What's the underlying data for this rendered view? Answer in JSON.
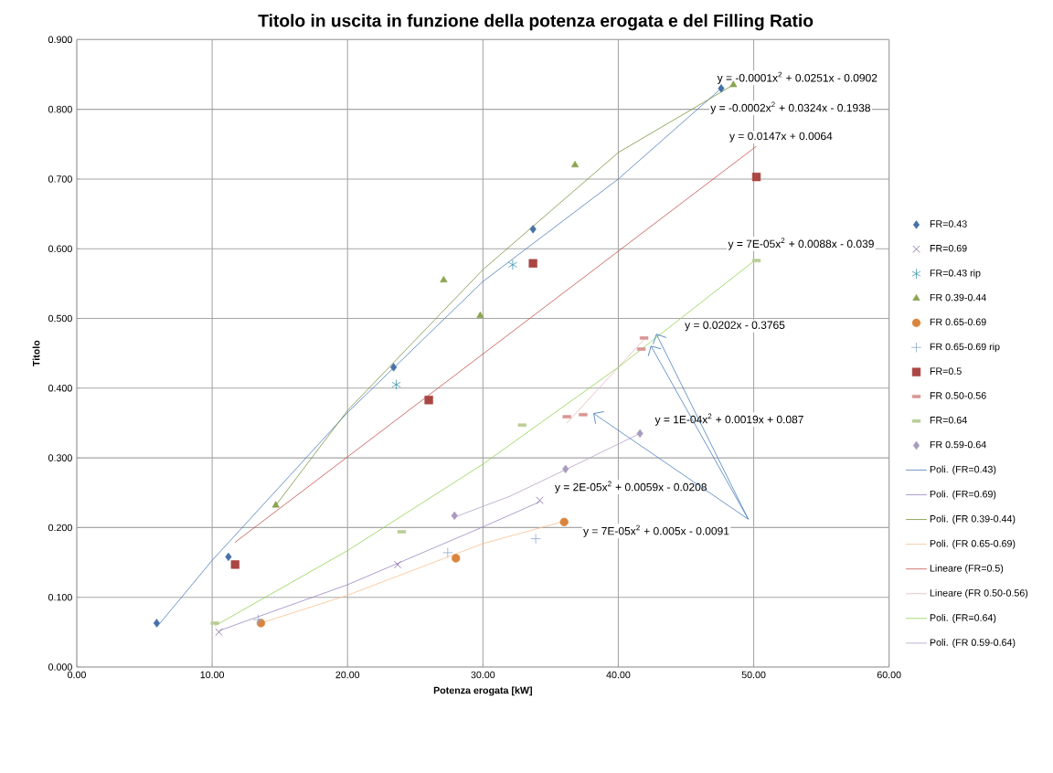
{
  "chart_data": {
    "type": "scatter",
    "title": "Titolo in uscita in funzione della potenza erogata e del Filling Ratio",
    "xlabel": "Potenza erogata [kW]",
    "ylabel": "Titolo",
    "xlim": [
      0,
      60
    ],
    "ylim": [
      0,
      0.9
    ],
    "xticks": [
      {
        "value": 0,
        "label": "0.00"
      },
      {
        "value": 10,
        "label": "10.00"
      },
      {
        "value": 20,
        "label": "20.00"
      },
      {
        "value": 30,
        "label": "30.00"
      },
      {
        "value": 40,
        "label": "40.00"
      },
      {
        "value": 50,
        "label": "50.00"
      },
      {
        "value": 60,
        "label": "60.00"
      }
    ],
    "yticks": [
      {
        "value": 0,
        "label": "0.000"
      },
      {
        "value": 0.1,
        "label": "0.100"
      },
      {
        "value": 0.2,
        "label": "0.200"
      },
      {
        "value": 0.3,
        "label": "0.300"
      },
      {
        "value": 0.4,
        "label": "0.400"
      },
      {
        "value": 0.5,
        "label": "0.500"
      },
      {
        "value": 0.6,
        "label": "0.600"
      },
      {
        "value": 0.7,
        "label": "0.700"
      },
      {
        "value": 0.8,
        "label": "0.800"
      },
      {
        "value": 0.9,
        "label": "0.900"
      }
    ],
    "grid": true,
    "legend": "right",
    "series": [
      {
        "name": "FR=0.43",
        "marker": "diamond",
        "color": "#4572a7",
        "x": [
          5.9,
          11.2,
          23.4,
          33.7,
          47.6
        ],
        "values": [
          0.063,
          0.158,
          0.43,
          0.628,
          0.83
        ]
      },
      {
        "name": "FR=0.69",
        "marker": "cross",
        "color": "#7d60a0",
        "x": [
          10.5,
          23.7,
          34.2
        ],
        "values": [
          0.05,
          0.147,
          0.239
        ]
      },
      {
        "name": "FR=0.43 rip",
        "marker": "cross",
        "color": "#4198af",
        "x": [
          23.6,
          32.2
        ],
        "values": [
          0.405,
          0.577
        ]
      },
      {
        "name": "FR 0.39-0.44",
        "marker": "triangle",
        "color": "#89a54e",
        "x": [
          14.7,
          27.1,
          29.8,
          36.8,
          48.5
        ],
        "values": [
          0.232,
          0.555,
          0.504,
          0.72,
          0.835
        ]
      },
      {
        "name": "FR 0.65-0.69",
        "marker": "circle",
        "color": "#db843d",
        "x": [
          13.6,
          28.0,
          36.0
        ],
        "values": [
          0.063,
          0.156,
          0.208
        ]
      },
      {
        "name": "FR 0.65-0.69 rip",
        "marker": "plus",
        "color": "#92a8cd",
        "x": [
          13.4,
          27.4,
          33.9
        ],
        "values": [
          0.068,
          0.164,
          0.184
        ]
      },
      {
        "name": "FR=0.5",
        "marker": "square",
        "color": "#aa4643",
        "x": [
          11.7,
          26.0,
          33.7,
          50.2
        ],
        "values": [
          0.147,
          0.383,
          0.579,
          0.703
        ]
      },
      {
        "name": "FR 0.50-0.56",
        "marker": "square",
        "color": "#d99694",
        "x": [
          36.2,
          37.4,
          41.7,
          41.9
        ],
        "values": [
          0.359,
          0.362,
          0.456,
          0.472
        ]
      },
      {
        "name": "FR=0.64",
        "marker": "square",
        "color": "#b9cd96",
        "x": [
          10.2,
          24.0,
          32.9,
          50.2
        ],
        "values": [
          0.063,
          0.194,
          0.347,
          0.583
        ]
      },
      {
        "name": "FR 0.59-0.64",
        "marker": "diamond",
        "color": "#a99bbd",
        "x": [
          27.9,
          36.1,
          41.6
        ],
        "values": [
          0.217,
          0.284,
          0.335
        ]
      },
      {
        "name": "Poli. (FR=0.43)",
        "type": "line",
        "marker": "none",
        "color": "#4a7ebb",
        "x": [
          5.9,
          10,
          20,
          30,
          40,
          47.6
        ],
        "values": [
          0.057,
          0.153,
          0.365,
          0.553,
          0.7,
          0.83
        ]
      },
      {
        "name": "Poli. (FR=0.69)",
        "type": "line",
        "marker": "none",
        "color": "#9b87c0",
        "x": [
          10.5,
          20,
          30,
          34.2
        ],
        "values": [
          0.052,
          0.118,
          0.201,
          0.237
        ]
      },
      {
        "name": "Poli. (FR 0.39-0.44)",
        "type": "line",
        "marker": "none",
        "color": "#77933c",
        "x": [
          14.7,
          20,
          30,
          40,
          48.5
        ],
        "values": [
          0.232,
          0.368,
          0.57,
          0.738,
          0.835
        ]
      },
      {
        "name": "Poli. (FR 0.65-0.69)",
        "type": "line",
        "marker": "none",
        "color": "#fac090",
        "x": [
          13.6,
          20,
          30,
          36.0
        ],
        "values": [
          0.063,
          0.103,
          0.177,
          0.209
        ]
      },
      {
        "name": "Lineare (FR=0.5)",
        "type": "line",
        "marker": "none",
        "color": "#c0504d",
        "x": [
          11.7,
          50.2
        ],
        "values": [
          0.179,
          0.747
        ]
      },
      {
        "name": "Lineare (FR 0.50-0.56)",
        "type": "line",
        "marker": "none",
        "color": "#e6b9b8",
        "x": [
          36.2,
          41.9
        ],
        "values": [
          0.35,
          0.47
        ]
      },
      {
        "name": "Poli. (FR=0.64)",
        "type": "line",
        "marker": "none",
        "color": "#92d050",
        "x": [
          10.2,
          20,
          30,
          40,
          50.2
        ],
        "values": [
          0.059,
          0.167,
          0.291,
          0.43,
          0.585
        ]
      },
      {
        "name": "Poli. (FR 0.59-0.64)",
        "type": "line",
        "marker": "none",
        "color": "#b3a2c7",
        "x": [
          27.9,
          32,
          36.1,
          41.6
        ],
        "values": [
          0.215,
          0.245,
          0.283,
          0.335
        ]
      }
    ],
    "annotations": [
      "y = -0.0001x$^{2}$ + 0.0251x - 0.0902",
      "y = -0.0002x$^{2}$ + 0.0324x - 0.1938",
      "y = 0.0147x + 0.0064",
      "y = 7E-05x$^{2}$ + 0.0088x - 0.039",
      "y = 0.0202x - 0.3765",
      "y = 1E-04x$^{2}$ + 0.0019x + 0.087",
      "y = 2E-05x$^{2}$ + 0.0059x - 0.0208",
      "y = 7E-05x$^{2}$ + 0.005x - 0.0091"
    ]
  }
}
